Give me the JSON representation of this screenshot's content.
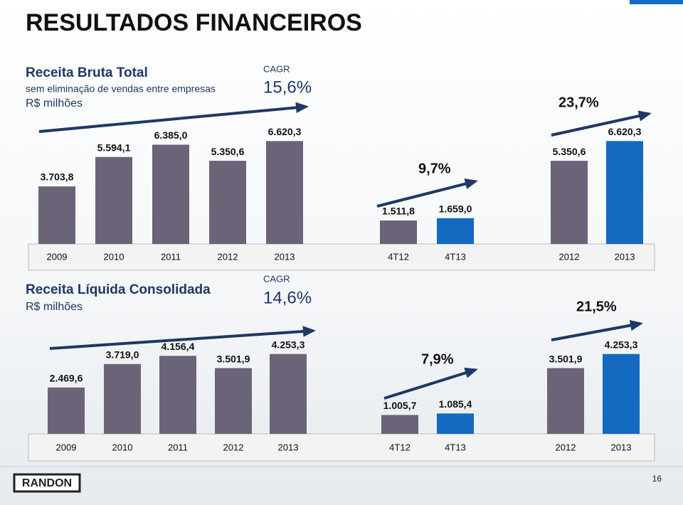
{
  "title": "RESULTADOS FINANCEIROS",
  "chart_data": [
    {
      "type": "bar",
      "title": "Receita Bruta Total",
      "subtitle": [
        "sem eliminação de vendas entre empresas",
        "R$ milhões"
      ],
      "annotation_label": "CAGR",
      "annotation": "15,6%",
      "categories": [
        "2009",
        "2010",
        "2011",
        "2012",
        "2013"
      ],
      "values": [
        3703.8,
        5594.1,
        6385.0,
        5350.6,
        6620.3
      ],
      "value_labels": [
        "3.703,8",
        "5.594,1",
        "6.385,0",
        "5.350,6",
        "6.620,3"
      ],
      "colors": [
        "#6b6478",
        "#6b6478",
        "#6b6478",
        "#6b6478",
        "#6b6478"
      ],
      "ylim": [
        0,
        7000
      ]
    },
    {
      "type": "bar",
      "annotation": "9,7%",
      "categories": [
        "4T12",
        "4T13"
      ],
      "values": [
        1511.8,
        1659.0
      ],
      "value_labels": [
        "1.511,8",
        "1.659,0"
      ],
      "colors": [
        "#6b6478",
        "#1469c0"
      ],
      "ylim": [
        0,
        7000
      ]
    },
    {
      "type": "bar",
      "annotation": "23,7%",
      "categories": [
        "2012",
        "2013"
      ],
      "values": [
        5350.6,
        6620.3
      ],
      "value_labels": [
        "5.350,6",
        "6.620,3"
      ],
      "colors": [
        "#6b6478",
        "#1469c0"
      ],
      "ylim": [
        0,
        7000
      ]
    },
    {
      "type": "bar",
      "title": "Receita Líquida Consolidada",
      "subtitle": [
        "R$ milhões"
      ],
      "annotation_label": "CAGR",
      "annotation": "14,6%",
      "categories": [
        "2009",
        "2010",
        "2011",
        "2012",
        "2013"
      ],
      "values": [
        2469.6,
        3719.0,
        4156.4,
        3501.9,
        4253.3
      ],
      "value_labels": [
        "2.469,6",
        "3.719,0",
        "4.156,4",
        "3.501,9",
        "4.253,3"
      ],
      "colors": [
        "#6b6478",
        "#6b6478",
        "#6b6478",
        "#6b6478",
        "#6b6478"
      ],
      "ylim": [
        0,
        5000
      ]
    },
    {
      "type": "bar",
      "annotation": "7,9%",
      "categories": [
        "4T12",
        "4T13"
      ],
      "values": [
        1005.7,
        1085.4
      ],
      "value_labels": [
        "1.005,7",
        "1.085,4"
      ],
      "colors": [
        "#6b6478",
        "#1469c0"
      ],
      "ylim": [
        0,
        5000
      ]
    },
    {
      "type": "bar",
      "annotation": "21,5%",
      "categories": [
        "2012",
        "2013"
      ],
      "values": [
        3501.9,
        4253.3
      ],
      "value_labels": [
        "3.501,9",
        "4.253,3"
      ],
      "colors": [
        "#6b6478",
        "#1469c0"
      ],
      "ylim": [
        0,
        5000
      ]
    }
  ],
  "footer": {
    "logo": "RANDON",
    "page": "16"
  }
}
